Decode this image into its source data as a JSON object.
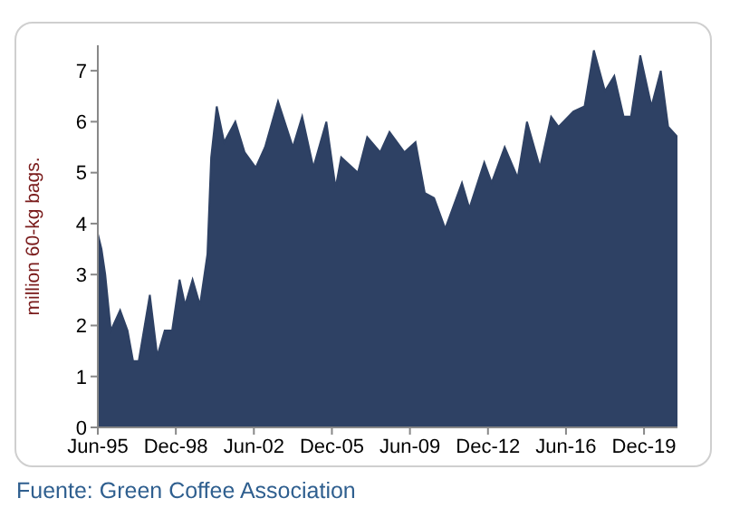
{
  "chart_data": {
    "type": "area",
    "ylabel": "million 60-kg bags.",
    "annotations": [
      "Fuente: Green Coffee Association"
    ],
    "x": [
      "1995-06",
      "1995-08",
      "1995-10",
      "1996-01",
      "1996-06",
      "1996-10",
      "1997-01",
      "1997-04",
      "1997-10",
      "1998-02",
      "1998-06",
      "1998-10",
      "1999-02",
      "1999-05",
      "1999-09",
      "2000-01",
      "2000-05",
      "2000-07",
      "2000-10",
      "2001-02",
      "2001-08",
      "2002-01",
      "2002-07",
      "2002-12",
      "2003-07",
      "2004-03",
      "2004-08",
      "2005-02",
      "2005-09",
      "2006-02",
      "2006-05",
      "2007-02",
      "2007-07",
      "2008-02",
      "2008-07",
      "2009-03",
      "2009-09",
      "2010-02",
      "2010-07",
      "2011-01",
      "2011-10",
      "2012-02",
      "2012-10",
      "2013-02",
      "2013-09",
      "2014-04",
      "2014-09",
      "2015-04",
      "2015-10",
      "2016-02",
      "2016-10",
      "2017-04",
      "2017-09",
      "2018-03",
      "2018-08",
      "2019-01",
      "2019-05",
      "2019-10",
      "2020-04",
      "2020-09",
      "2021-01",
      "2021-06"
    ],
    "series": [
      {
        "color": "#2e4164",
        "values": [
          3.8,
          3.5,
          3.0,
          1.9,
          2.3,
          1.9,
          1.3,
          1.3,
          2.6,
          1.4,
          1.9,
          1.9,
          2.9,
          2.4,
          2.9,
          2.4,
          3.4,
          5.3,
          6.3,
          5.6,
          6.0,
          5.4,
          5.1,
          5.5,
          6.4,
          5.5,
          6.1,
          5.1,
          6.0,
          4.7,
          5.3,
          5.0,
          5.7,
          5.4,
          5.8,
          5.4,
          5.6,
          4.6,
          4.5,
          3.9,
          4.8,
          4.3,
          5.2,
          4.8,
          5.5,
          4.9,
          6.0,
          5.1,
          6.1,
          5.9,
          6.2,
          6.3,
          7.4,
          6.6,
          6.9,
          6.1,
          6.1,
          7.3,
          6.3,
          7.0,
          5.9,
          5.7
        ]
      }
    ],
    "xlim": [
      "1995-06",
      "2021-06"
    ],
    "xticks": [
      {
        "value": "1995-06",
        "label": "Jun-95"
      },
      {
        "value": "1998-12",
        "label": "Dec-98"
      },
      {
        "value": "2002-06",
        "label": "Jun-02"
      },
      {
        "value": "2005-12",
        "label": "Dec-05"
      },
      {
        "value": "2009-06",
        "label": "Jun-09"
      },
      {
        "value": "2012-12",
        "label": "Dec-12"
      },
      {
        "value": "2016-06",
        "label": "Jun-16"
      },
      {
        "value": "2019-12",
        "label": "Dec-19"
      }
    ],
    "ylim": [
      0,
      7.5
    ],
    "yticks": [
      0,
      1,
      2,
      3,
      4,
      5,
      6,
      7
    ],
    "grid": false,
    "legend": false
  }
}
